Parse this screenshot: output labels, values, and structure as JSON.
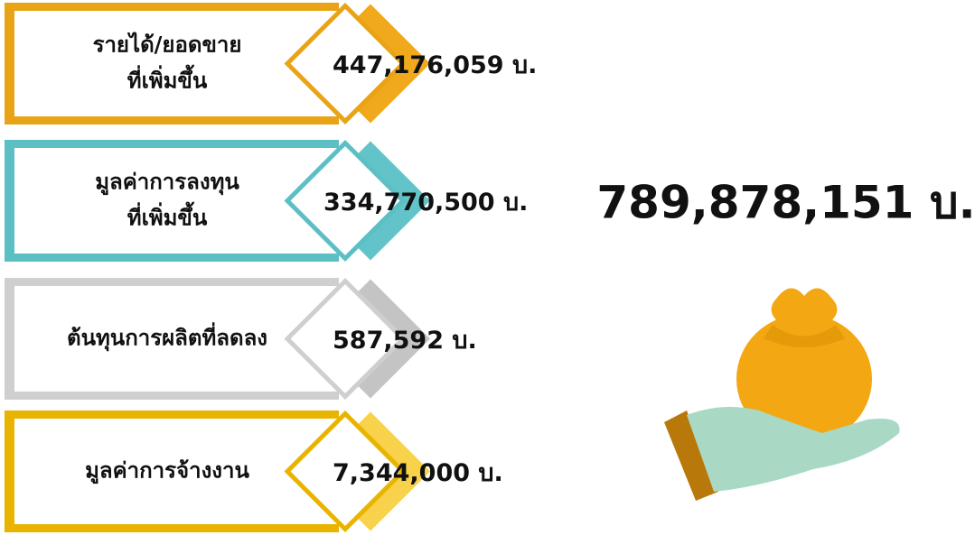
{
  "items": [
    {
      "label": [
        "รายได้/ยอดขาย",
        "ที่เพิ่มขึ้น"
      ],
      "value": "447,176,059 บ."
    },
    {
      "label": [
        "มูลค่าการลงทุน",
        "ที่เพิ่มขึ้น"
      ],
      "value": "334,770,500 บ."
    },
    {
      "label": [
        "ต้นทุนการผลิตที่ลดลง"
      ],
      "value": "587,592 บ."
    },
    {
      "label": [
        "มูลค่าการจ้างงาน"
      ],
      "value": "7,344,000 บ."
    }
  ],
  "total": "789,878,151 บ."
}
